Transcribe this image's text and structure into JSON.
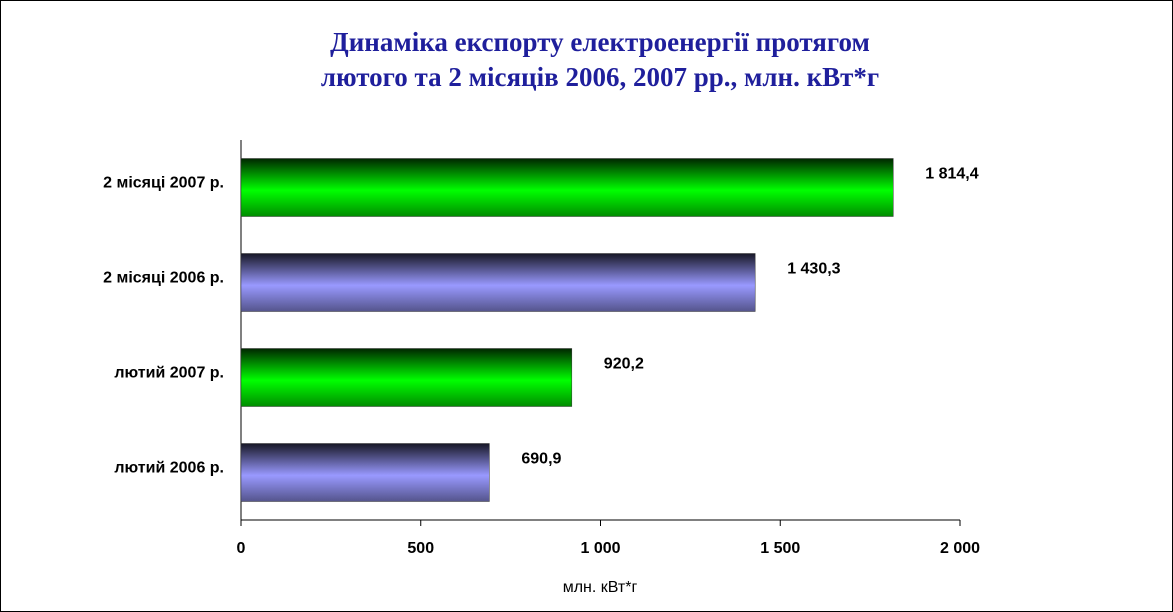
{
  "chart_data": {
    "type": "bar",
    "orientation": "horizontal",
    "title": [
      "Динаміка експорту електроенергії протягом",
      "лютого та 2 місяців  2006, 2007 рр., млн. кВт*г"
    ],
    "xlabel": "млн. кВт*г",
    "categories": [
      "2 місяці 2007 р.",
      "2 місяці 2006 р.",
      "лютий 2007 р.",
      "лютий 2006 р."
    ],
    "values": [
      1814.4,
      1430.3,
      920.2,
      690.9
    ],
    "value_labels": [
      "1 814,4",
      "1 430,3",
      "920,2",
      "690,9"
    ],
    "colors": [
      "#00ff00",
      "#9999ff",
      "#00ff00",
      "#9999ff"
    ],
    "xlim": [
      0,
      2000
    ],
    "xticks": [
      0,
      500,
      {
        "value": 1000,
        "label": "1 000"
      },
      {
        "value": 1500,
        "label": "1 500"
      },
      {
        "value": 2000,
        "label": "2 000"
      }
    ],
    "grid": false
  }
}
